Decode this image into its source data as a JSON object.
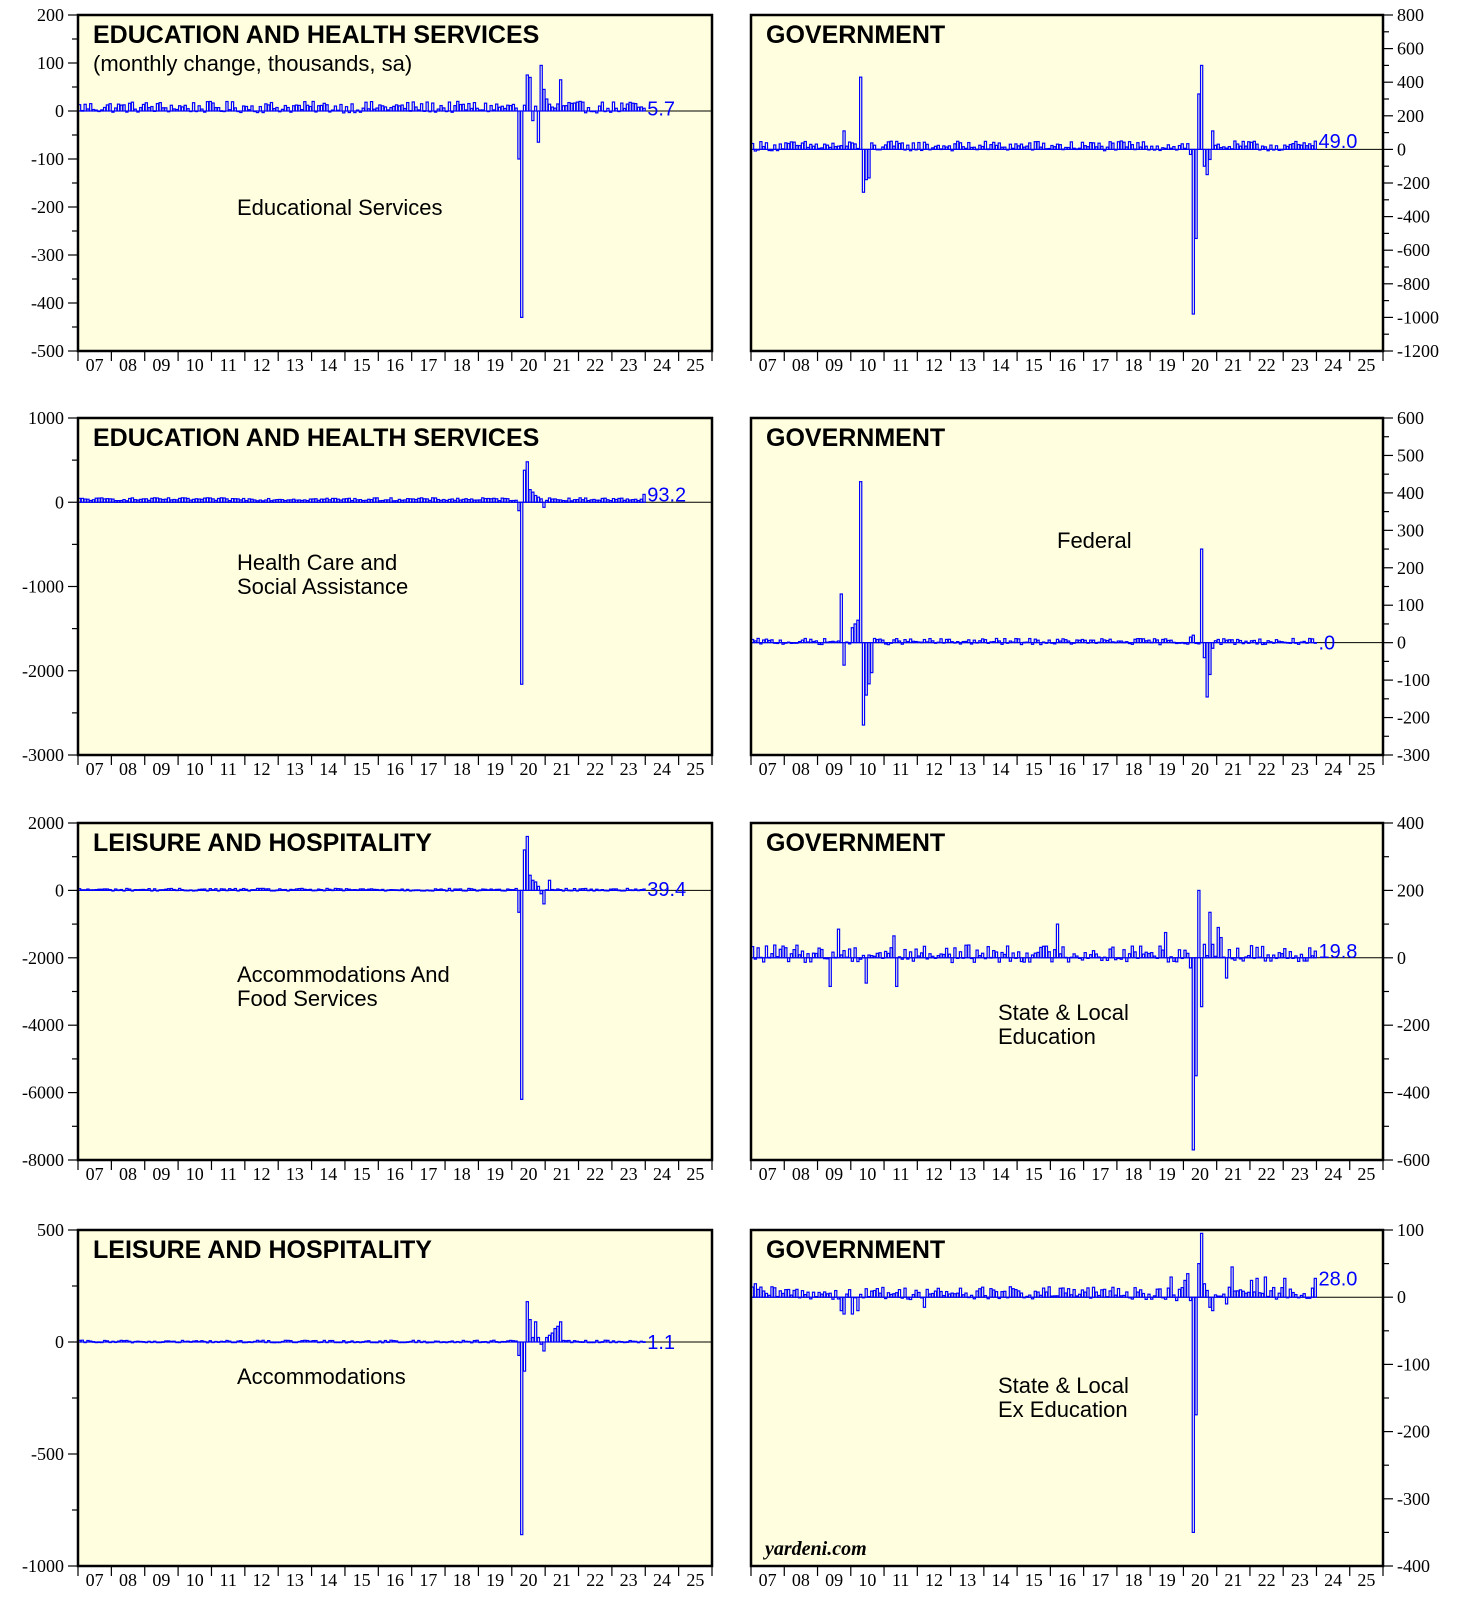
{
  "x_years": [
    "07",
    "08",
    "09",
    "10",
    "11",
    "12",
    "13",
    "14",
    "15",
    "16",
    "17",
    "18",
    "19",
    "20",
    "21",
    "22",
    "23",
    "24",
    "25"
  ],
  "credit": "yardeni.com",
  "colors": {
    "plot_bg": "#ffffe0",
    "bars": "#0000ff",
    "zero_line": "#000000",
    "frame": "#000000"
  },
  "chart_data": [
    {
      "type": "bar",
      "title": "EDUCATION AND HEALTH SERVICES",
      "subtitle": "(monthly change, thousands, sa)",
      "series_label": [
        "Educational Services"
      ],
      "last_value": "5.7",
      "ylim": [
        -500,
        200
      ],
      "yticks": [
        200,
        100,
        0,
        -100,
        -200,
        -300,
        -400,
        -500
      ],
      "ytick_labels": [
        "200",
        "100",
        "0",
        "-100",
        "-200",
        "-300",
        "-400",
        "-500"
      ],
      "y_axis_side": "left",
      "xlim": [
        "2007-01",
        "2025-12"
      ],
      "series": [
        {
          "x_start": "2007-01",
          "normal_level": 8,
          "noise": 10,
          "events": [
            [
              "2020-03",
              -100
            ],
            [
              "2020-04",
              -430
            ],
            [
              "2020-05",
              12
            ],
            [
              "2020-06",
              75
            ],
            [
              "2020-07",
              70
            ],
            [
              "2020-08",
              -20
            ],
            [
              "2020-09",
              10
            ],
            [
              "2020-10",
              -65
            ],
            [
              "2020-11",
              95
            ],
            [
              "2020-12",
              45
            ],
            [
              "2021-01",
              25
            ],
            [
              "2021-06",
              65
            ]
          ],
          "end": "2023-12",
          "last": 5.7
        }
      ]
    },
    {
      "type": "bar",
      "title": "GOVERNMENT",
      "subtitle": "",
      "series_label": [],
      "last_value": "49.0",
      "ylim": [
        -1200,
        800
      ],
      "yticks": [
        800,
        600,
        400,
        200,
        0,
        -200,
        -400,
        -600,
        -800,
        -1000,
        -1200
      ],
      "ytick_labels": [
        "800",
        "600",
        "400",
        "200",
        "0",
        "-200",
        "-400",
        "-600",
        "-800",
        "-1000",
        "-1200"
      ],
      "y_axis_side": "right",
      "xlim": [
        "2007-01",
        "2025-12"
      ],
      "series": [
        {
          "x_start": "2007-01",
          "normal_level": 20,
          "noise": 25,
          "events": [
            [
              "2009-10",
              110
            ],
            [
              "2010-04",
              430
            ],
            [
              "2010-05",
              -255
            ],
            [
              "2010-06",
              -180
            ],
            [
              "2010-07",
              -170
            ],
            [
              "2020-03",
              -30
            ],
            [
              "2020-04",
              -980
            ],
            [
              "2020-05",
              -530
            ],
            [
              "2020-06",
              330
            ],
            [
              "2020-07",
              500
            ],
            [
              "2020-08",
              -100
            ],
            [
              "2020-09",
              -150
            ],
            [
              "2020-10",
              -60
            ],
            [
              "2020-11",
              110
            ]
          ],
          "end": "2023-12",
          "last": 49.0
        }
      ]
    },
    {
      "type": "bar",
      "title": "EDUCATION AND HEALTH SERVICES",
      "subtitle": "",
      "series_label": [
        "Health Care and",
        "Social Assistance"
      ],
      "last_value": "93.2",
      "ylim": [
        -3000,
        1000
      ],
      "yticks": [
        1000,
        0,
        -1000,
        -2000,
        -3000
      ],
      "ytick_labels": [
        "1000",
        "0",
        "-1000",
        "-2000",
        "-3000"
      ],
      "y_axis_side": "left",
      "xlim": [
        "2007-01",
        "2025-12"
      ],
      "series": [
        {
          "x_start": "2007-01",
          "normal_level": 35,
          "noise": 15,
          "events": [
            [
              "2020-03",
              -100
            ],
            [
              "2020-04",
              -2160
            ],
            [
              "2020-05",
              380
            ],
            [
              "2020-06",
              480
            ],
            [
              "2020-07",
              150
            ],
            [
              "2020-08",
              120
            ],
            [
              "2020-09",
              80
            ],
            [
              "2020-10",
              60
            ],
            [
              "2020-11",
              40
            ],
            [
              "2020-12",
              -60
            ]
          ],
          "end": "2023-12",
          "last": 93.2
        }
      ]
    },
    {
      "type": "bar",
      "title": "GOVERNMENT",
      "subtitle": "",
      "series_label": [
        "Federal"
      ],
      "last_value": ".0",
      "ylim": [
        -300,
        600
      ],
      "yticks": [
        600,
        500,
        400,
        300,
        200,
        100,
        0,
        -100,
        -200,
        -300
      ],
      "ytick_labels": [
        "600",
        "500",
        "400",
        "300",
        "200",
        "100",
        "0",
        "-100",
        "-200",
        "-300"
      ],
      "y_axis_side": "right",
      "xlim": [
        "2007-01",
        "2025-12"
      ],
      "series": [
        {
          "x_start": "2007-01",
          "normal_level": 3,
          "noise": 7,
          "events": [
            [
              "2009-09",
              130
            ],
            [
              "2009-10",
              -60
            ],
            [
              "2010-01",
              40
            ],
            [
              "2010-02",
              50
            ],
            [
              "2010-03",
              60
            ],
            [
              "2010-04",
              430
            ],
            [
              "2010-05",
              -220
            ],
            [
              "2010-06",
              -140
            ],
            [
              "2010-07",
              -110
            ],
            [
              "2010-08",
              -80
            ],
            [
              "2020-03",
              15
            ],
            [
              "2020-04",
              20
            ],
            [
              "2020-07",
              250
            ],
            [
              "2020-08",
              -40
            ],
            [
              "2020-09",
              -145
            ],
            [
              "2020-10",
              -85
            ],
            [
              "2020-11",
              -15
            ]
          ],
          "end": "2023-12",
          "last": 0
        }
      ]
    },
    {
      "type": "bar",
      "title": "LEISURE AND HOSPITALITY",
      "subtitle": "",
      "series_label": [
        "Accommodations And",
        "Food Services"
      ],
      "last_value": "39.4",
      "ylim": [
        -8000,
        2000
      ],
      "yticks": [
        2000,
        0,
        -2000,
        -4000,
        -6000,
        -8000
      ],
      "ytick_labels": [
        "2000",
        "0",
        "-2000",
        "-4000",
        "-6000",
        "-8000"
      ],
      "y_axis_side": "left",
      "xlim": [
        "2007-01",
        "2025-12"
      ],
      "series": [
        {
          "x_start": "2007-01",
          "normal_level": 25,
          "noise": 30,
          "events": [
            [
              "2020-03",
              -650
            ],
            [
              "2020-04",
              -6200
            ],
            [
              "2020-05",
              1200
            ],
            [
              "2020-06",
              1600
            ],
            [
              "2020-07",
              450
            ],
            [
              "2020-08",
              300
            ],
            [
              "2020-09",
              250
            ],
            [
              "2020-10",
              120
            ],
            [
              "2020-11",
              -100
            ],
            [
              "2020-12",
              -400
            ],
            [
              "2021-01",
              20
            ],
            [
              "2021-02",
              300
            ]
          ],
          "end": "2023-12",
          "last": 39.4
        }
      ]
    },
    {
      "type": "bar",
      "title": "GOVERNMENT",
      "subtitle": "",
      "series_label": [
        "State & Local",
        "Education"
      ],
      "last_value": "19.8",
      "ylim": [
        -600,
        400
      ],
      "yticks": [
        400,
        200,
        0,
        -200,
        -400,
        -600
      ],
      "ytick_labels": [
        "400",
        "200",
        "0",
        "-200",
        "-400",
        "-600"
      ],
      "y_axis_side": "right",
      "xlim": [
        "2007-01",
        "2025-12"
      ],
      "series": [
        {
          "x_start": "2007-01",
          "normal_level": 12,
          "noise": 22,
          "events": [
            [
              "2009-05",
              -85
            ],
            [
              "2009-08",
              85
            ],
            [
              "2010-06",
              -75
            ],
            [
              "2011-04",
              65
            ],
            [
              "2011-05",
              -85
            ],
            [
              "2016-03",
              100
            ],
            [
              "2019-06",
              75
            ],
            [
              "2020-03",
              -30
            ],
            [
              "2020-04",
              -570
            ],
            [
              "2020-05",
              -350
            ],
            [
              "2020-06",
              200
            ],
            [
              "2020-07",
              -145
            ],
            [
              "2020-08",
              40
            ],
            [
              "2020-10",
              135
            ],
            [
              "2020-11",
              40
            ],
            [
              "2021-01",
              90
            ],
            [
              "2021-02",
              60
            ],
            [
              "2021-04",
              -60
            ]
          ],
          "end": "2023-12",
          "last": 19.8
        }
      ]
    },
    {
      "type": "bar",
      "title": "LEISURE AND HOSPITALITY",
      "subtitle": "",
      "series_label": [
        "Accommodations"
      ],
      "last_value": "1.1",
      "ylim": [
        -1000,
        500
      ],
      "yticks": [
        500,
        0,
        -500,
        -1000
      ],
      "ytick_labels": [
        "500",
        "0",
        "-500",
        "-1000"
      ],
      "y_axis_side": "left",
      "xlim": [
        "2007-01",
        "2025-12"
      ],
      "series": [
        {
          "x_start": "2007-01",
          "normal_level": 2,
          "noise": 5,
          "events": [
            [
              "2020-03",
              -60
            ],
            [
              "2020-04",
              -860
            ],
            [
              "2020-05",
              -130
            ],
            [
              "2020-06",
              180
            ],
            [
              "2020-07",
              100
            ],
            [
              "2020-08",
              20
            ],
            [
              "2020-09",
              90
            ],
            [
              "2020-10",
              20
            ],
            [
              "2020-11",
              -10
            ],
            [
              "2020-12",
              -40
            ],
            [
              "2021-01",
              20
            ],
            [
              "2021-02",
              30
            ],
            [
              "2021-03",
              40
            ],
            [
              "2021-04",
              60
            ],
            [
              "2021-05",
              70
            ],
            [
              "2021-06",
              90
            ]
          ],
          "end": "2023-12",
          "last": 1.1
        }
      ]
    },
    {
      "type": "bar",
      "title": "GOVERNMENT",
      "subtitle": "",
      "series_label": [
        "State & Local",
        "Ex Education"
      ],
      "last_value": "28.0",
      "ylim": [
        -400,
        100
      ],
      "yticks": [
        100,
        0,
        -100,
        -200,
        -300,
        -400
      ],
      "ytick_labels": [
        "100",
        "0",
        "-100",
        "-200",
        "-300",
        "-400"
      ],
      "y_axis_side": "right",
      "xlim": [
        "2007-01",
        "2025-12"
      ],
      "series": [
        {
          "x_start": "2007-01",
          "normal_level": 6,
          "noise": 8,
          "events": [
            [
              "2007-02",
              20
            ],
            [
              "2007-04",
              15
            ],
            [
              "2009-09",
              -20
            ],
            [
              "2009-10",
              -25
            ],
            [
              "2010-01",
              -25
            ],
            [
              "2010-03",
              -20
            ],
            [
              "2012-03",
              -15
            ],
            [
              "2019-08",
              30
            ],
            [
              "2019-10",
              -5
            ],
            [
              "2020-01",
              25
            ],
            [
              "2020-02",
              35
            ],
            [
              "2020-03",
              -5
            ],
            [
              "2020-04",
              -350
            ],
            [
              "2020-05",
              -175
            ],
            [
              "2020-06",
              50
            ],
            [
              "2020-07",
              95
            ],
            [
              "2020-08",
              20
            ],
            [
              "2020-09",
              10
            ],
            [
              "2020-10",
              -15
            ],
            [
              "2020-11",
              -20
            ],
            [
              "2021-04",
              -10
            ],
            [
              "2021-06",
              45
            ],
            [
              "2022-01",
              25
            ],
            [
              "2022-03",
              28
            ],
            [
              "2022-06",
              30
            ],
            [
              "2023-01",
              28
            ]
          ],
          "end": "2023-12",
          "last": 28.0
        }
      ]
    }
  ]
}
